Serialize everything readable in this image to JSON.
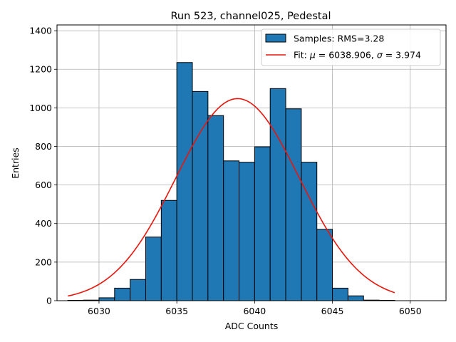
{
  "chart_data": {
    "type": "bar",
    "title": "Run 523, channel025, Pedestal",
    "xlabel": "ADC Counts",
    "ylabel": "Entries",
    "xlim": [
      6027.3,
      6052.3
    ],
    "ylim": [
      0,
      1430
    ],
    "grid": true,
    "x_ticks": [
      6030,
      6035,
      6040,
      6045,
      6050
    ],
    "y_ticks": [
      0,
      200,
      400,
      600,
      800,
      1000,
      1200,
      1400
    ],
    "histogram": {
      "name": "Samples: RMS=3.28",
      "bin_edges": [
        6028,
        6029,
        6030,
        6031,
        6032,
        6033,
        6034,
        6035,
        6036,
        6037,
        6038,
        6039,
        6040,
        6041,
        6042,
        6043,
        6044,
        6045,
        6046,
        6047,
        6048,
        6049,
        6050,
        6051
      ],
      "counts": [
        2,
        3,
        15,
        65,
        110,
        330,
        520,
        1235,
        1085,
        960,
        725,
        718,
        798,
        1100,
        995,
        718,
        370,
        65,
        25,
        3,
        2,
        0,
        0
      ],
      "color": "#1f77b4",
      "edgecolor": "#000000"
    },
    "fit": {
      "name": "Fit: μ = 6038.906, σ = 3.974",
      "mu": 6038.906,
      "sigma": 3.974,
      "amplitude": 1048,
      "x_range": [
        6028,
        6049
      ],
      "color": "#e8160c"
    },
    "legend": {
      "location": "upper right",
      "samples_prefix": "Samples: RMS=3.28",
      "fit_prefix": "Fit: ",
      "mu_symbol": "μ",
      "mu_value": " = 6038.906, ",
      "sigma_symbol": "σ",
      "sigma_value": " = 3.974"
    }
  }
}
